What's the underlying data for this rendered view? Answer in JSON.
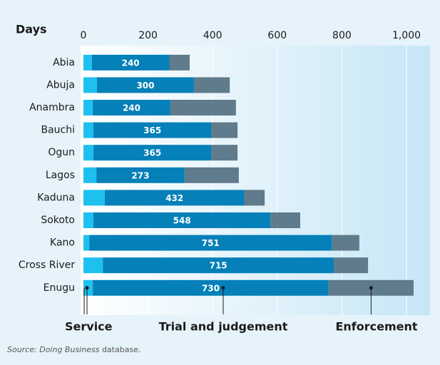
{
  "chart_data": {
    "type": "stacked-bar-horizontal",
    "axis_title": "Days",
    "categories": [
      "Abia",
      "Abuja",
      "Anambra",
      "Bauchi",
      "Ogun",
      "Lagos",
      "Kaduna",
      "Sokoto",
      "Kano",
      "Cross River",
      "Enugu"
    ],
    "series": [
      {
        "name": "Service",
        "color": "#1ec0f0",
        "values": [
          26,
          42,
          29,
          31,
          31,
          40,
          66,
          31,
          18,
          60,
          29
        ]
      },
      {
        "name": "Trial and judgement",
        "color": "#0580b8",
        "values": [
          240,
          300,
          240,
          365,
          365,
          273,
          432,
          548,
          751,
          715,
          730
        ]
      },
      {
        "name": "Enforcement",
        "color": "#607b8b",
        "values": [
          63,
          111,
          203,
          81,
          81,
          168,
          63,
          92,
          85,
          106,
          263
        ]
      }
    ],
    "xlim": [
      0,
      1000
    ],
    "xticks": [
      0,
      200,
      400,
      600,
      800,
      {
        "value": 1000,
        "label": "1,000"
      }
    ],
    "grid": true,
    "source_italic": "Source: Doing Business",
    "source_rest": " database."
  }
}
